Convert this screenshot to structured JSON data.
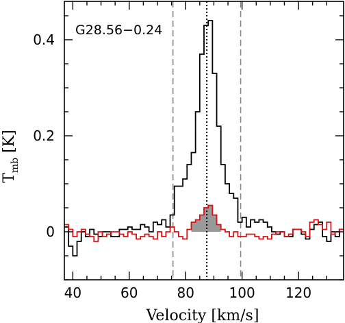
{
  "chart_data": {
    "type": "line",
    "annotation": "G28.56−0.24",
    "xlabel": "Velocity [km/s]",
    "ylabel_main": "T",
    "ylabel_sub": "mb",
    "ylabel_unit": " [K]",
    "xlim": [
      37,
      136
    ],
    "ylim": [
      -0.1,
      0.48
    ],
    "xticks": [
      40,
      60,
      80,
      100,
      120
    ],
    "yticks": [
      0,
      0.2,
      0.4
    ],
    "ytick_labels": [
      "0",
      "0.2",
      "0.4"
    ],
    "vlines": [
      {
        "x": 75.5,
        "style": "dashed",
        "color": "#888888"
      },
      {
        "x": 99.5,
        "style": "dashed",
        "color": "#888888"
      },
      {
        "x": 87.5,
        "style": "dotted",
        "color": "#000000"
      }
    ],
    "series": [
      {
        "style": "step",
        "color": "#000000",
        "x": [
          37,
          38.5,
          40,
          41.5,
          43,
          44.5,
          46,
          47.5,
          49,
          50.5,
          52,
          53.5,
          55,
          56.5,
          58,
          59.5,
          61,
          62.5,
          64,
          65.5,
          67,
          68.5,
          70,
          71.5,
          73,
          74.5,
          76,
          77.5,
          79,
          80.5,
          82,
          83.5,
          85,
          86.5,
          88,
          89.5,
          91,
          92.5,
          94,
          95.5,
          97,
          98.5,
          100,
          101.5,
          103,
          104.5,
          106,
          107.5,
          109,
          110.5,
          112,
          113.5,
          115,
          116.5,
          118,
          119.5,
          121,
          122.5,
          124,
          125.5,
          127,
          128.5,
          130,
          131.5,
          133,
          134.5,
          136
        ],
        "y": [
          0.01,
          -0.03,
          -0.05,
          -0.02,
          0.0,
          -0.01,
          0.005,
          -0.005,
          -0.01,
          0.0,
          0.0,
          -0.01,
          -0.01,
          0.005,
          0.005,
          0.01,
          0.005,
          0.005,
          0.015,
          0.01,
          0.0,
          0.02,
          0.015,
          0.025,
          0.01,
          0.035,
          0.095,
          0.095,
          0.11,
          0.14,
          0.165,
          0.25,
          0.37,
          0.43,
          0.44,
          0.33,
          0.22,
          0.14,
          0.1,
          0.08,
          0.07,
          0.02,
          0.03,
          0.01,
          0.025,
          0.02,
          0.025,
          0.02,
          0.01,
          0.0,
          -0.005,
          0.0,
          -0.01,
          -0.01,
          0.005,
          0.005,
          -0.005,
          -0.015,
          0.005,
          0.015,
          0.02,
          -0.01,
          -0.02,
          0.0,
          -0.01,
          0.005,
          0.0
        ]
      },
      {
        "style": "step",
        "color": "#dd1111",
        "x": [
          37,
          38.5,
          40,
          41.5,
          43,
          44.5,
          46,
          47.5,
          49,
          50.5,
          52,
          53.5,
          55,
          56.5,
          58,
          59.5,
          61,
          62.5,
          64,
          65.5,
          67,
          68.5,
          70,
          71.5,
          73,
          74.5,
          76,
          77.5,
          79,
          80.5,
          82,
          83.5,
          85,
          86.5,
          88,
          89.5,
          91,
          92.5,
          94,
          95.5,
          97,
          98.5,
          100,
          101.5,
          103,
          104.5,
          106,
          107.5,
          109,
          110.5,
          112,
          113.5,
          115,
          116.5,
          118,
          119.5,
          121,
          122.5,
          124,
          125.5,
          127,
          128.5,
          130,
          131.5,
          133,
          134.5,
          136
        ],
        "y": [
          0.015,
          0.005,
          -0.01,
          0.0,
          0.005,
          -0.005,
          -0.01,
          -0.02,
          0.0,
          -0.01,
          -0.005,
          0.0,
          0.0,
          -0.005,
          -0.01,
          0.0,
          -0.005,
          -0.015,
          -0.01,
          -0.005,
          -0.01,
          -0.015,
          0.0,
          -0.01,
          0.0,
          0.01,
          0.0,
          -0.01,
          -0.015,
          0.005,
          0.02,
          0.025,
          0.035,
          0.05,
          0.055,
          0.035,
          0.015,
          0.005,
          0.0,
          -0.01,
          0.0,
          -0.01,
          -0.01,
          -0.005,
          -0.005,
          -0.01,
          -0.015,
          -0.01,
          -0.015,
          -0.005,
          0.0,
          0.0,
          -0.01,
          -0.005,
          0.005,
          0.005,
          0.0,
          -0.01,
          0.02,
          0.025,
          0.015,
          0.005,
          0.02,
          -0.005,
          0.0,
          0.005,
          0.02
        ]
      }
    ],
    "fill_region": {
      "x_from": 82,
      "x_to": 92.5,
      "color": "#999999",
      "source_series": 1
    }
  }
}
